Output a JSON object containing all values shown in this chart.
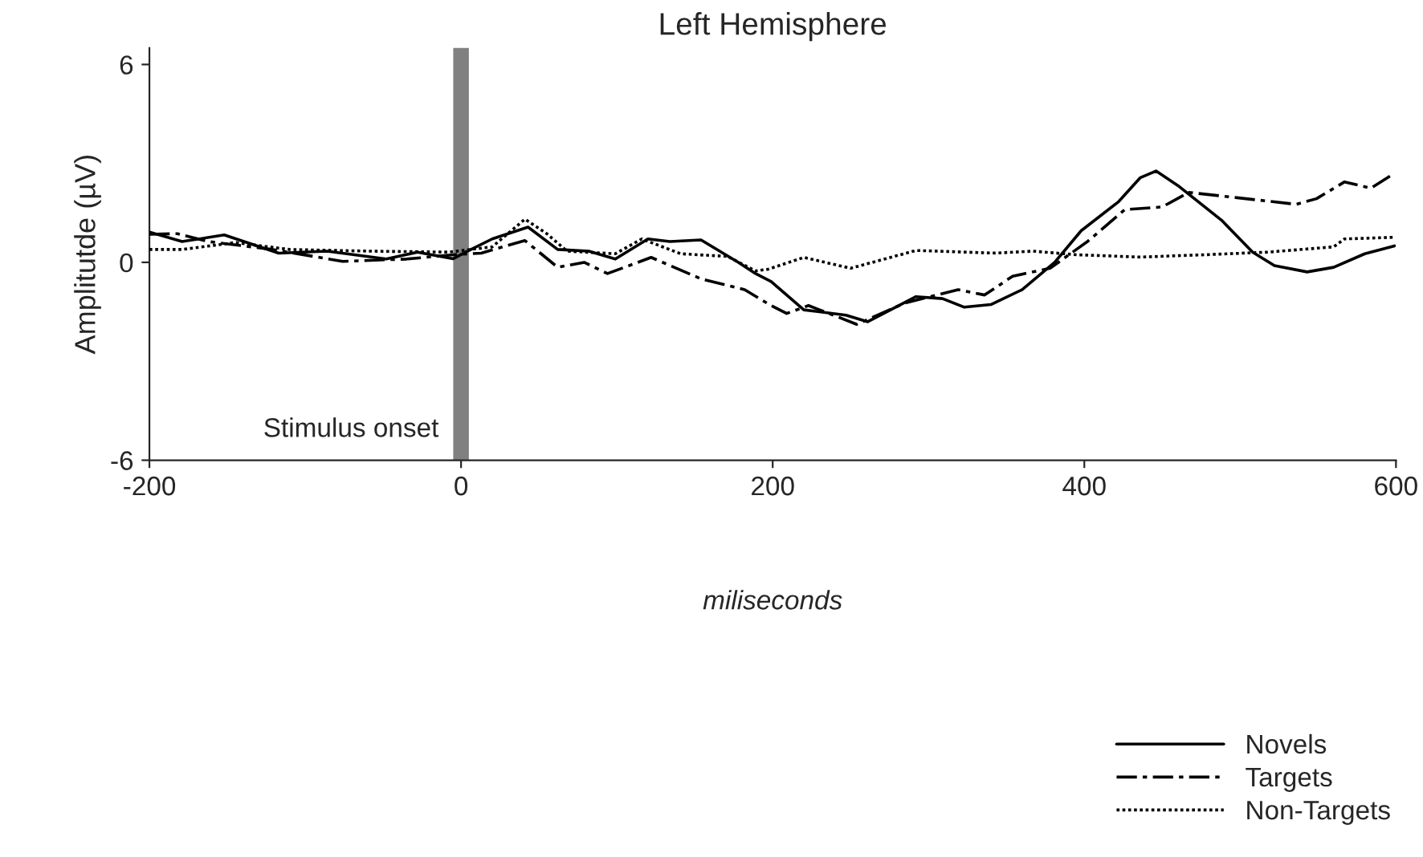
{
  "chart_data": {
    "type": "line",
    "title": "Left Hemisphere",
    "xlabel": "miliseconds",
    "ylabel": "Amplitutde (µV)",
    "xlim": [
      -200,
      600
    ],
    "xticks": [
      -200,
      0,
      200,
      400,
      600
    ],
    "ylim": [
      -6,
      6.5
    ],
    "yticks": [
      -6,
      0,
      6
    ],
    "grid": false,
    "legend": "bottom right",
    "marker": "none",
    "ref_lines": [
      {
        "axis": "x",
        "value": 0,
        "label": "Stimulus onset",
        "color": "#808080",
        "line_style": "solid"
      }
    ],
    "series": [
      {
        "name": "Novels",
        "color": "#000000",
        "line_style": "solid",
        "x": [
          -200,
          -179,
          -152,
          -117,
          -86,
          -48,
          -28,
          -5,
          3,
          20,
          43,
          62,
          82,
          99,
          120,
          134,
          154,
          178,
          189,
          199,
          220,
          247,
          261,
          292,
          309,
          323,
          340,
          360,
          381,
          398,
          422,
          436,
          446,
          460,
          488,
          508,
          522,
          543,
          560,
          580,
          599
        ],
        "values": [
          0.92,
          0.63,
          0.83,
          0.28,
          0.34,
          0.1,
          0.31,
          0.11,
          0.31,
          0.71,
          1.07,
          0.39,
          0.34,
          0.1,
          0.71,
          0.63,
          0.68,
          0,
          -0.34,
          -0.58,
          -1.44,
          -1.6,
          -1.8,
          -1.04,
          -1.1,
          -1.36,
          -1.28,
          -0.83,
          0,
          0.96,
          1.84,
          2.57,
          2.77,
          2.33,
          1.28,
          0.31,
          -0.1,
          -0.29,
          -0.15,
          0.26,
          0.5
        ]
      },
      {
        "name": "Targets",
        "color": "#000000",
        "line_style": "dashed",
        "x": [
          -200,
          -182,
          -162,
          -121,
          -76,
          -35,
          -5,
          13,
          41,
          62,
          79,
          94,
          122,
          154,
          182,
          199,
          209,
          223,
          254,
          285,
          319,
          336,
          354,
          378,
          402,
          426,
          450,
          467,
          498,
          536,
          549,
          567,
          584,
          599
        ],
        "values": [
          0.85,
          0.87,
          0.63,
          0.39,
          0.03,
          0.1,
          0.23,
          0.28,
          0.66,
          -0.15,
          0,
          -0.34,
          0.15,
          -0.5,
          -0.83,
          -1.31,
          -1.55,
          -1.31,
          -1.88,
          -1.23,
          -0.83,
          -0.99,
          -0.42,
          -0.18,
          0.63,
          1.6,
          1.68,
          2.12,
          1.96,
          1.76,
          1.93,
          2.44,
          2.25,
          2.7
        ]
      },
      {
        "name": "Non-Targets",
        "color": "#000000",
        "line_style": "dotted",
        "x": [
          -200,
          -179,
          -145,
          -110,
          -59,
          -8,
          20,
          41,
          55,
          68,
          99,
          116,
          141,
          171,
          189,
          197,
          220,
          250,
          292,
          343,
          367,
          395,
          436,
          477,
          518,
          560,
          567,
          599
        ],
        "values": [
          0.39,
          0.39,
          0.6,
          0.39,
          0.34,
          0.31,
          0.47,
          1.31,
          0.87,
          0.34,
          0.26,
          0.71,
          0.26,
          0.18,
          -0.26,
          -0.21,
          0.15,
          -0.18,
          0.36,
          0.28,
          0.34,
          0.23,
          0.16,
          0.23,
          0.31,
          0.47,
          0.71,
          0.76
        ]
      }
    ]
  }
}
